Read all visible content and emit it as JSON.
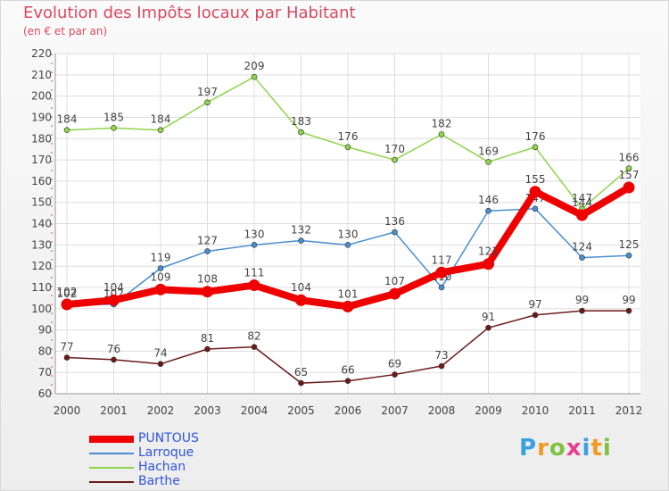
{
  "title": "Evolution des Impôts locaux par Habitant",
  "subtitle": "(en € et par an)",
  "logo_text": "Proxiti",
  "chart_data": {
    "type": "line",
    "categories": [
      "2000",
      "2001",
      "2002",
      "2003",
      "2004",
      "2005",
      "2006",
      "2007",
      "2008",
      "2009",
      "2010",
      "2011",
      "2012"
    ],
    "ylim": [
      60,
      220
    ],
    "yticks": [
      60,
      70,
      80,
      90,
      100,
      110,
      120,
      130,
      140,
      150,
      160,
      170,
      180,
      190,
      200,
      210,
      220
    ],
    "series": [
      {
        "name": "Hachan",
        "color": "#8fd44a",
        "values": [
          184,
          185,
          184,
          197,
          209,
          183,
          176,
          170,
          182,
          169,
          176,
          147,
          166
        ]
      },
      {
        "name": "Larroque",
        "color": "#4a8ecf",
        "values": [
          102,
          102,
          119,
          127,
          130,
          132,
          130,
          136,
          110,
          146,
          147,
          124,
          125
        ]
      },
      {
        "name": "Barthe",
        "color": "#6b1a1a",
        "values": [
          77,
          76,
          74,
          81,
          82,
          65,
          66,
          69,
          73,
          91,
          97,
          99,
          99
        ]
      },
      {
        "name": "PUNTOUS",
        "color": "#ee0000",
        "values": [
          102,
          104,
          109,
          108,
          111,
          104,
          101,
          107,
          117,
          121,
          155,
          144,
          157
        ]
      }
    ],
    "legend": [
      "PUNTOUS",
      "Larroque",
      "Hachan",
      "Barthe"
    ]
  }
}
